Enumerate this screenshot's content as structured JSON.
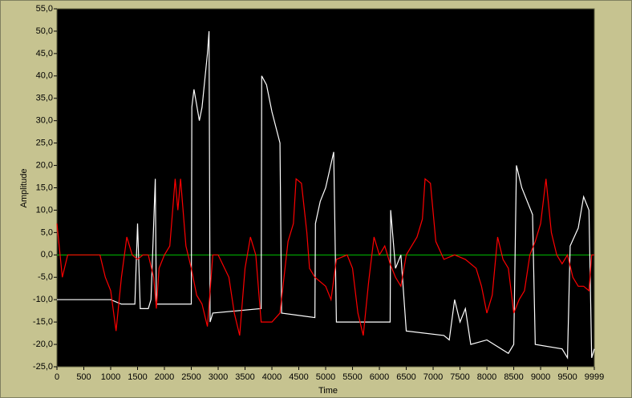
{
  "chart_data": {
    "type": "line",
    "x_label": "Time",
    "y_label": "Amplitude",
    "xlim": [
      0,
      9999
    ],
    "ylim": [
      -25,
      55
    ],
    "xticks": [
      0,
      500,
      1000,
      1500,
      2000,
      2500,
      3000,
      3500,
      4000,
      4500,
      5000,
      5500,
      6000,
      6500,
      7000,
      7500,
      8000,
      8500,
      9000,
      9500,
      9999
    ],
    "yticks": [
      {
        "value": -25,
        "label": "-25,0"
      },
      {
        "value": -20,
        "label": "-20,0"
      },
      {
        "value": -15,
        "label": "-15,0"
      },
      {
        "value": -10,
        "label": "-10,0"
      },
      {
        "value": -5,
        "label": "-5,0"
      },
      {
        "value": 0,
        "label": "0,0"
      },
      {
        "value": 5,
        "label": "5,0"
      },
      {
        "value": 10,
        "label": "10,0"
      },
      {
        "value": 15,
        "label": "15,0"
      },
      {
        "value": 20,
        "label": "20,0"
      },
      {
        "value": 25,
        "label": "25,0"
      },
      {
        "value": 30,
        "label": "30,0"
      },
      {
        "value": 35,
        "label": "35,0"
      },
      {
        "value": 40,
        "label": "40,0"
      },
      {
        "value": 45,
        "label": "45,0"
      },
      {
        "value": 50,
        "label": "50,0"
      },
      {
        "value": 55,
        "label": "55,0"
      }
    ],
    "zero_line_color": "#00c000",
    "background_color": "#000000",
    "series": [
      {
        "color": "#ffffff",
        "x": [
          0,
          1000,
          1200,
          1450,
          1500,
          1550,
          1700,
          1750,
          1830,
          1850,
          2500,
          2510,
          2550,
          2650,
          2700,
          2800,
          2830,
          2850,
          2900,
          3800,
          3810,
          3900,
          4000,
          4150,
          4180,
          4800,
          4810,
          4900,
          5000,
          5150,
          5200,
          6200,
          6210,
          6300,
          6400,
          6500,
          7200,
          7300,
          7400,
          7500,
          7600,
          7700,
          8000,
          8400,
          8500,
          8550,
          8650,
          8850,
          8900,
          9400,
          9500,
          9550,
          9700,
          9800,
          9900,
          9950,
          9999
        ],
        "values": [
          -10,
          -10,
          -11,
          -11,
          7,
          -12,
          -12,
          -10,
          17,
          -11,
          -11,
          33,
          37,
          30,
          33,
          45,
          50,
          -15,
          -13,
          -12,
          40,
          38,
          32,
          25,
          -13,
          -14,
          7,
          12,
          15,
          23,
          -15,
          -15,
          10,
          -3,
          0,
          -17,
          -18,
          -19,
          -10,
          -15,
          -12,
          -20,
          -19,
          -22,
          -20,
          20,
          15,
          9,
          -20,
          -21,
          -23,
          2,
          6,
          13,
          10,
          -23,
          -21
        ]
      },
      {
        "color": "#ff0000",
        "x": [
          0,
          100,
          200,
          500,
          800,
          900,
          1000,
          1100,
          1200,
          1300,
          1400,
          1500,
          1600,
          1700,
          1800,
          1850,
          1900,
          2000,
          2100,
          2200,
          2250,
          2300,
          2400,
          2500,
          2600,
          2700,
          2800,
          2900,
          3000,
          3200,
          3300,
          3400,
          3500,
          3600,
          3700,
          3800,
          4000,
          4150,
          4300,
          4400,
          4450,
          4550,
          4650,
          4700,
          4800,
          5000,
          5100,
          5200,
          5400,
          5500,
          5600,
          5700,
          5800,
          5900,
          6000,
          6100,
          6200,
          6300,
          6400,
          6500,
          6700,
          6800,
          6850,
          6950,
          7050,
          7200,
          7400,
          7600,
          7800,
          7900,
          8000,
          8100,
          8200,
          8300,
          8400,
          8500,
          8600,
          8700,
          8800,
          8900,
          9000,
          9100,
          9200,
          9300,
          9400,
          9500,
          9600,
          9700,
          9800,
          9900,
          9950,
          9999
        ],
        "values": [
          7,
          -5,
          0,
          0,
          0,
          -5,
          -8,
          -17,
          -5,
          4,
          0,
          -1,
          0,
          0,
          -5,
          -12,
          -3,
          0,
          2,
          17,
          10,
          17,
          2,
          -3,
          -9,
          -11,
          -16,
          0,
          0,
          -5,
          -13,
          -18,
          -3,
          4,
          0,
          -15,
          -15,
          -13,
          3,
          7,
          17,
          16,
          5,
          -3,
          -5,
          -7,
          -10,
          -1,
          0,
          -3,
          -13,
          -18,
          -6,
          4,
          0,
          2,
          -2,
          -5,
          -7,
          0,
          4,
          8,
          17,
          16,
          3,
          -1,
          0,
          -1,
          -3,
          -7,
          -13,
          -9,
          4,
          -1,
          -3,
          -13,
          -10,
          -8,
          0,
          3,
          7,
          17,
          5,
          0,
          -2,
          0,
          -5,
          -7,
          -7,
          -8,
          0,
          0
        ]
      }
    ]
  }
}
